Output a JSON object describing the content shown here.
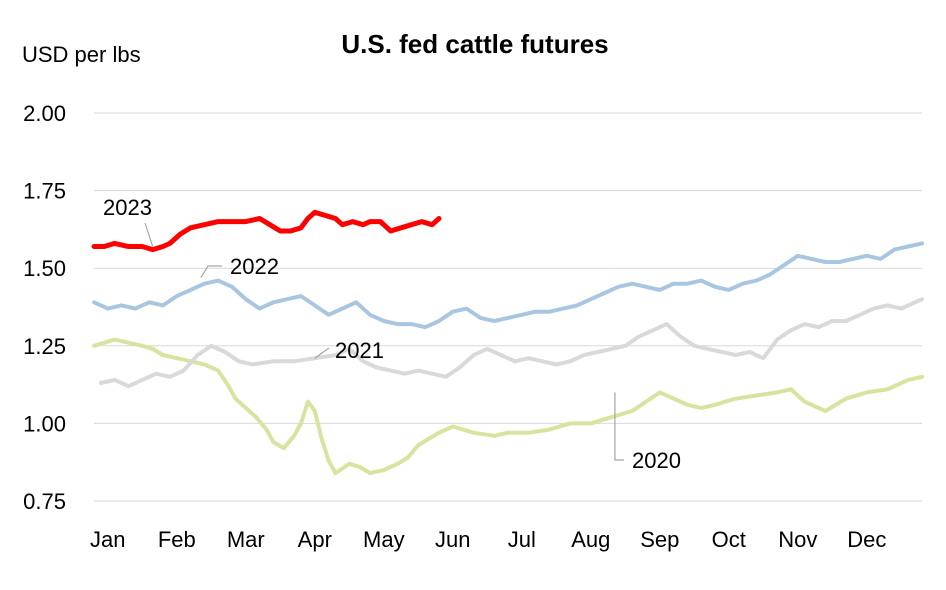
{
  "chart_data": {
    "type": "line",
    "title": "U.S. fed cattle futures",
    "ylabel": "USD per lbs",
    "ylim": [
      0.75,
      2.0
    ],
    "yticks": [
      0.75,
      1.0,
      1.25,
      1.5,
      1.75,
      2.0
    ],
    "ytick_labels": [
      "0.75",
      "1.00",
      "1.25",
      "1.50",
      "1.75",
      "2.00"
    ],
    "xlim": [
      0,
      12
    ],
    "x_tick_labels": [
      "Jan",
      "Feb",
      "Mar",
      "Apr",
      "May",
      "Jun",
      "Jul",
      "Aug",
      "Sep",
      "Oct",
      "Nov",
      "Dec"
    ],
    "grid": "horizontal",
    "legend": "inline labels",
    "series": [
      {
        "name": "2020",
        "color": "#d7e4a0",
        "x": [
          0.0,
          0.15,
          0.3,
          0.5,
          0.7,
          0.85,
          1.0,
          1.2,
          1.4,
          1.6,
          1.8,
          1.95,
          2.05,
          2.2,
          2.35,
          2.5,
          2.6,
          2.75,
          2.9,
          3.0,
          3.1,
          3.2,
          3.3,
          3.4,
          3.5,
          3.7,
          3.85,
          4.0,
          4.2,
          4.4,
          4.55,
          4.7,
          4.85,
          5.0,
          5.2,
          5.5,
          5.8,
          6.0,
          6.3,
          6.6,
          6.9,
          7.2,
          7.5,
          7.8,
          8.0,
          8.2,
          8.4,
          8.6,
          8.8,
          9.0,
          9.3,
          9.6,
          9.9,
          10.1,
          10.3,
          10.6,
          10.9,
          11.2,
          11.5,
          11.8,
          12.0
        ],
        "y": [
          1.25,
          1.26,
          1.27,
          1.26,
          1.25,
          1.24,
          1.22,
          1.21,
          1.2,
          1.19,
          1.17,
          1.12,
          1.08,
          1.05,
          1.02,
          0.98,
          0.94,
          0.92,
          0.96,
          1.0,
          1.07,
          1.04,
          0.95,
          0.88,
          0.84,
          0.87,
          0.86,
          0.84,
          0.85,
          0.87,
          0.89,
          0.93,
          0.95,
          0.97,
          0.99,
          0.97,
          0.96,
          0.97,
          0.97,
          0.98,
          1.0,
          1.0,
          1.02,
          1.04,
          1.07,
          1.1,
          1.08,
          1.06,
          1.05,
          1.06,
          1.08,
          1.09,
          1.1,
          1.11,
          1.07,
          1.04,
          1.08,
          1.1,
          1.11,
          1.14,
          1.15
        ]
      },
      {
        "name": "2021",
        "color": "#d9d9d9",
        "x": [
          0.1,
          0.3,
          0.5,
          0.7,
          0.9,
          1.1,
          1.3,
          1.5,
          1.7,
          1.9,
          2.1,
          2.3,
          2.6,
          2.9,
          3.2,
          3.5,
          3.7,
          3.9,
          4.1,
          4.3,
          4.5,
          4.7,
          4.9,
          5.1,
          5.3,
          5.5,
          5.7,
          5.9,
          6.1,
          6.3,
          6.5,
          6.7,
          6.9,
          7.1,
          7.3,
          7.5,
          7.7,
          7.9,
          8.1,
          8.3,
          8.5,
          8.7,
          8.9,
          9.1,
          9.3,
          9.5,
          9.7,
          9.9,
          10.1,
          10.3,
          10.5,
          10.7,
          10.9,
          11.1,
          11.3,
          11.5,
          11.7,
          11.9,
          12.0
        ],
        "y": [
          1.13,
          1.14,
          1.12,
          1.14,
          1.16,
          1.15,
          1.17,
          1.22,
          1.25,
          1.23,
          1.2,
          1.19,
          1.2,
          1.2,
          1.21,
          1.22,
          1.24,
          1.2,
          1.18,
          1.17,
          1.16,
          1.17,
          1.16,
          1.15,
          1.18,
          1.22,
          1.24,
          1.22,
          1.2,
          1.21,
          1.2,
          1.19,
          1.2,
          1.22,
          1.23,
          1.24,
          1.25,
          1.28,
          1.3,
          1.32,
          1.28,
          1.25,
          1.24,
          1.23,
          1.22,
          1.23,
          1.21,
          1.27,
          1.3,
          1.32,
          1.31,
          1.33,
          1.33,
          1.35,
          1.37,
          1.38,
          1.37,
          1.39,
          1.4
        ]
      },
      {
        "name": "2022",
        "color": "#a9c6e0",
        "x": [
          0.0,
          0.2,
          0.4,
          0.6,
          0.8,
          1.0,
          1.2,
          1.4,
          1.6,
          1.8,
          2.0,
          2.2,
          2.4,
          2.6,
          2.8,
          3.0,
          3.2,
          3.4,
          3.6,
          3.8,
          4.0,
          4.2,
          4.4,
          4.6,
          4.8,
          5.0,
          5.2,
          5.4,
          5.6,
          5.8,
          6.0,
          6.2,
          6.4,
          6.6,
          6.8,
          7.0,
          7.2,
          7.4,
          7.6,
          7.8,
          8.0,
          8.2,
          8.4,
          8.6,
          8.8,
          9.0,
          9.2,
          9.4,
          9.6,
          9.8,
          10.0,
          10.2,
          10.4,
          10.6,
          10.8,
          11.0,
          11.2,
          11.4,
          11.6,
          11.8,
          12.0
        ],
        "y": [
          1.39,
          1.37,
          1.38,
          1.37,
          1.39,
          1.38,
          1.41,
          1.43,
          1.45,
          1.46,
          1.44,
          1.4,
          1.37,
          1.39,
          1.4,
          1.41,
          1.38,
          1.35,
          1.37,
          1.39,
          1.35,
          1.33,
          1.32,
          1.32,
          1.31,
          1.33,
          1.36,
          1.37,
          1.34,
          1.33,
          1.34,
          1.35,
          1.36,
          1.36,
          1.37,
          1.38,
          1.4,
          1.42,
          1.44,
          1.45,
          1.44,
          1.43,
          1.45,
          1.45,
          1.46,
          1.44,
          1.43,
          1.45,
          1.46,
          1.48,
          1.51,
          1.54,
          1.53,
          1.52,
          1.52,
          1.53,
          1.54,
          1.53,
          1.56,
          1.57,
          1.58
        ]
      },
      {
        "name": "2023",
        "color": "#ff0000",
        "x": [
          0.0,
          0.15,
          0.3,
          0.5,
          0.7,
          0.85,
          1.0,
          1.1,
          1.25,
          1.4,
          1.6,
          1.8,
          2.0,
          2.2,
          2.4,
          2.55,
          2.7,
          2.85,
          3.0,
          3.1,
          3.2,
          3.35,
          3.5,
          3.6,
          3.75,
          3.9,
          4.0,
          4.15,
          4.3,
          4.45,
          4.6,
          4.75,
          4.9,
          5.0
        ],
        "y": [
          1.57,
          1.57,
          1.58,
          1.57,
          1.57,
          1.56,
          1.57,
          1.58,
          1.61,
          1.63,
          1.64,
          1.65,
          1.65,
          1.65,
          1.66,
          1.64,
          1.62,
          1.62,
          1.63,
          1.66,
          1.68,
          1.67,
          1.66,
          1.64,
          1.65,
          1.64,
          1.65,
          1.65,
          1.62,
          1.63,
          1.64,
          1.65,
          1.64,
          1.66
        ]
      }
    ],
    "annotations": [
      {
        "text": "2023",
        "series": "2023",
        "pointer": [
          0.85,
          1.57
        ]
      },
      {
        "text": "2022",
        "series": "2022",
        "pointer": [
          1.55,
          1.47
        ]
      },
      {
        "text": "2021",
        "series": "2021",
        "pointer": [
          3.2,
          1.21
        ]
      },
      {
        "text": "2020",
        "series": "2020",
        "pointer": [
          7.55,
          1.1
        ]
      }
    ]
  }
}
